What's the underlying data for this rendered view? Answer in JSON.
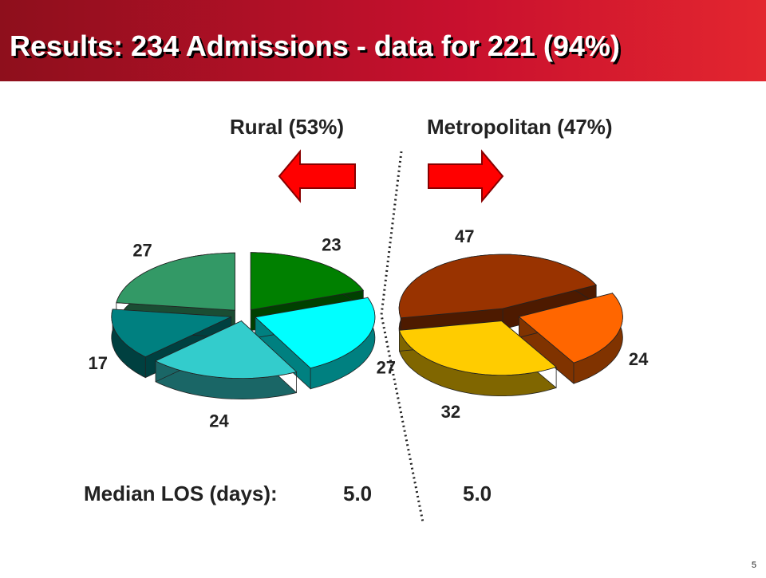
{
  "header": {
    "title": "Results: 234 Admissions - data for 221 (94%)"
  },
  "chart_data": [
    {
      "type": "pie",
      "title": "Rural (53%)",
      "values": [
        23,
        27,
        24,
        17,
        27
      ],
      "colors": [
        "#008000",
        "#00ffff",
        "#33cccc",
        "#008080",
        "#339966"
      ]
    },
    {
      "type": "pie",
      "title": "Metropolitan (47%)",
      "values": [
        47,
        24,
        32
      ],
      "colors": [
        "#993300",
        "#ff6600",
        "#ffcc00"
      ]
    }
  ],
  "median_los": {
    "label": "Median LOS (days):",
    "rural": "5.0",
    "metropolitan": "5.0"
  },
  "page_number": "5"
}
